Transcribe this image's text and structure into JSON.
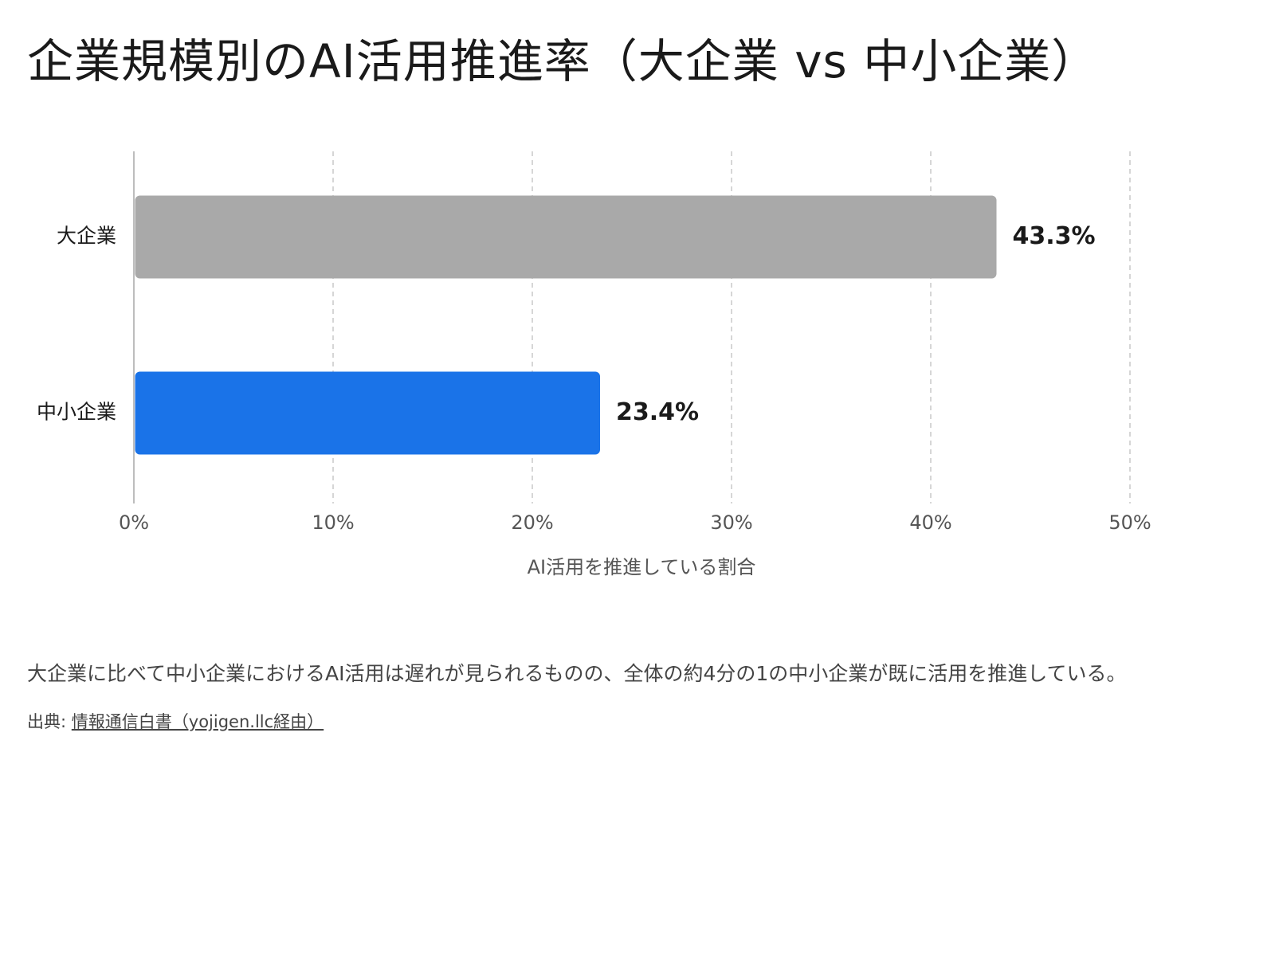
{
  "title": "企業規模別のAI活用推進率（大企業 vs 中小企業）",
  "chart_data": {
    "type": "bar",
    "orientation": "horizontal",
    "categories": [
      "大企業",
      "中小企業"
    ],
    "values": [
      43.3,
      23.4
    ],
    "value_labels": [
      "43.3%",
      "23.4%"
    ],
    "colors": [
      "#a9a9a9",
      "#1a73e8"
    ],
    "xlim": [
      0,
      50
    ],
    "xticks": [
      0,
      10,
      20,
      30,
      40,
      50
    ],
    "xtick_labels": [
      "0%",
      "10%",
      "20%",
      "30%",
      "40%",
      "50%"
    ],
    "xlabel": "AI活用を推進している割合",
    "grid": "vertical dashed"
  },
  "note": "大企業に比べて中小企業におけるAI活用は遅れが見られるものの、全体の約4分の1の中小企業が既に活用を推進している。",
  "source": {
    "prefix": "出典:",
    "link_text": "情報通信白書（yojigen.llc経由）"
  }
}
